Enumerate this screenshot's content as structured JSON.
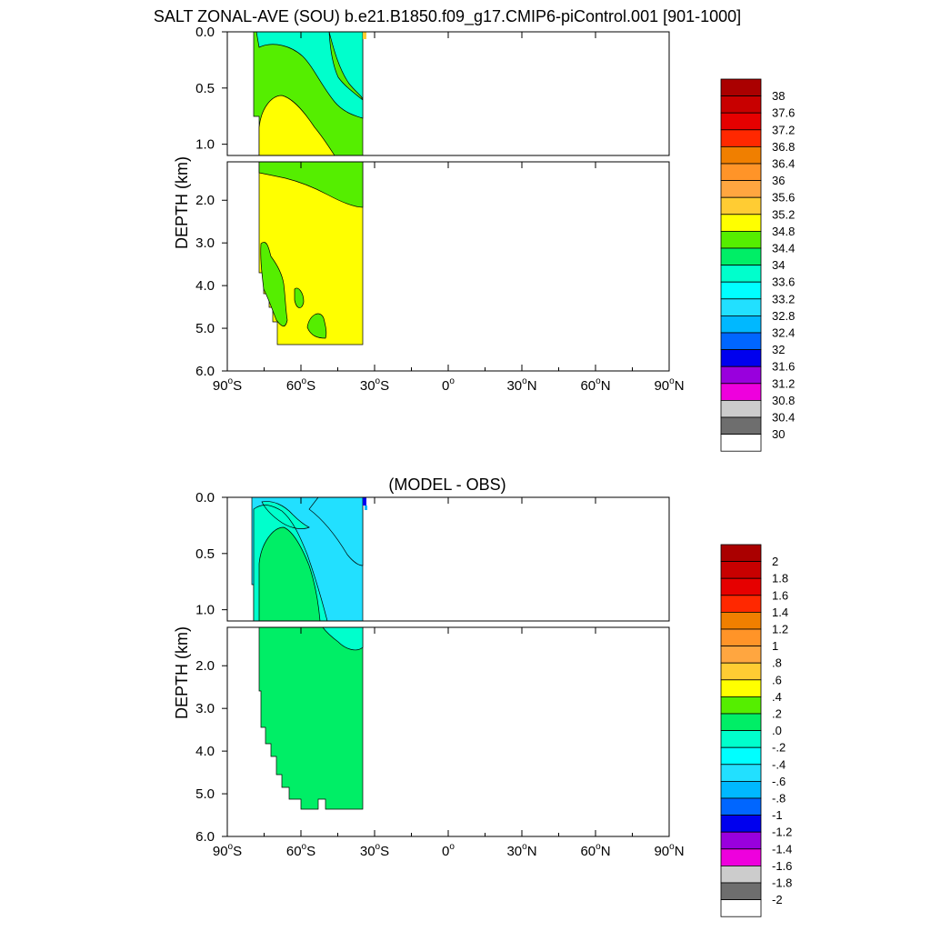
{
  "figure": {
    "title": "SALT ZONAL-AVE (SOU) b.e21.B1850.f09_g17.CMIP6-piControl.001 [901-1000]"
  },
  "chart_data": [
    {
      "type": "contour",
      "panel": "model",
      "title": "",
      "ylabel": "DEPTH (km)",
      "xlim": [
        -90,
        90
      ],
      "ylim_upper": [
        0,
        1.1
      ],
      "ylim_lower": [
        1.1,
        6.0
      ],
      "y_ticks_upper": [
        {
          "value": 0.0,
          "label": "0.0"
        },
        {
          "value": 0.5,
          "label": "0.5"
        },
        {
          "value": 1.0,
          "label": "1.0"
        }
      ],
      "y_ticks_lower": [
        {
          "value": 2.0,
          "label": "2.0"
        },
        {
          "value": 3.0,
          "label": "3.0"
        },
        {
          "value": 4.0,
          "label": "4.0"
        },
        {
          "value": 5.0,
          "label": "5.0"
        },
        {
          "value": 6.0,
          "label": "6.0"
        }
      ],
      "x_ticks": [
        {
          "value": -90,
          "num": "90",
          "hem": "S"
        },
        {
          "value": -60,
          "num": "60",
          "hem": "S"
        },
        {
          "value": -30,
          "num": "30",
          "hem": "S"
        },
        {
          "value": 0,
          "num": "0",
          "hem": ""
        },
        {
          "value": 30,
          "num": "30",
          "hem": "N"
        },
        {
          "value": 60,
          "num": "60",
          "hem": "N"
        },
        {
          "value": 90,
          "num": "90",
          "hem": "N"
        }
      ],
      "data_extent": {
        "lat_range": [
          -78,
          -34
        ],
        "depth_max": 5.4
      },
      "colorbar": {
        "labels": [
          "38",
          "37.6",
          "37.2",
          "36.8",
          "36.4",
          "36",
          "35.6",
          "35.2",
          "34.8",
          "34.4",
          "34",
          "33.6",
          "33.2",
          "32.8",
          "32.4",
          "32",
          "31.6",
          "31.2",
          "30.8",
          "30.4",
          "30"
        ],
        "colors": [
          "#aa0000",
          "#c80000",
          "#e60000",
          "#ff2800",
          "#f07f00",
          "#ff9428",
          "#ffa640",
          "#ffcc33",
          "#ffff00",
          "#55ee00",
          "#00ee66",
          "#00ffcc",
          "#00ffff",
          "#22e0ff",
          "#00b8ff",
          "#0066ff",
          "#0000ee",
          "#9900dd",
          "#ee00dd",
          "#cccccc",
          "#6e6e6e",
          "#ffffff"
        ]
      },
      "regions": [
        {
          "value": "34.4-34.8",
          "color": "#ffff00",
          "lat_range": [
            -78,
            -34
          ],
          "depth_range": [
            0.55,
            5.4
          ]
        },
        {
          "value": "34.0-34.4",
          "color": "#55ee00",
          "lat_range": [
            -78,
            -34
          ],
          "depth_range": [
            0.05,
            2.3
          ]
        },
        {
          "value": "33.6-34.0",
          "color": "#00ffcc",
          "lat_range": [
            -76,
            -38
          ],
          "depth_range": [
            0.0,
            0.8
          ]
        },
        {
          "value": "34.0-34.4",
          "color": "#55ee00",
          "lat_range": [
            -76,
            -65
          ],
          "depth_range": [
            3.0,
            5.2
          ]
        },
        {
          "value": "34.0-34.4",
          "color": "#55ee00",
          "lat_range": [
            -51,
            -46
          ],
          "depth_range": [
            4.9,
            5.3
          ]
        }
      ]
    },
    {
      "type": "contour",
      "panel": "difference",
      "title": "(MODEL - OBS)",
      "ylabel": "DEPTH (km)",
      "xlim": [
        -90,
        90
      ],
      "ylim_upper": [
        0,
        1.1
      ],
      "ylim_lower": [
        1.1,
        6.0
      ],
      "y_ticks_upper": [
        {
          "value": 0.0,
          "label": "0.0"
        },
        {
          "value": 0.5,
          "label": "0.5"
        },
        {
          "value": 1.0,
          "label": "1.0"
        }
      ],
      "y_ticks_lower": [
        {
          "value": 2.0,
          "label": "2.0"
        },
        {
          "value": 3.0,
          "label": "3.0"
        },
        {
          "value": 4.0,
          "label": "4.0"
        },
        {
          "value": 5.0,
          "label": "5.0"
        },
        {
          "value": 6.0,
          "label": "6.0"
        }
      ],
      "x_ticks": [
        {
          "value": -90,
          "num": "90",
          "hem": "S"
        },
        {
          "value": -60,
          "num": "60",
          "hem": "S"
        },
        {
          "value": -30,
          "num": "30",
          "hem": "S"
        },
        {
          "value": 0,
          "num": "0",
          "hem": ""
        },
        {
          "value": 30,
          "num": "30",
          "hem": "N"
        },
        {
          "value": 60,
          "num": "60",
          "hem": "N"
        },
        {
          "value": 90,
          "num": "90",
          "hem": "N"
        }
      ],
      "data_extent": {
        "lat_range": [
          -78,
          -34
        ],
        "depth_max": 5.4
      },
      "colorbar": {
        "labels": [
          "2",
          "1.8",
          "1.6",
          "1.4",
          "1.2",
          "1",
          ".8",
          ".6",
          ".4",
          ".2",
          ".0",
          "-.2",
          "-.4",
          "-.6",
          "-.8",
          "-1",
          "-1.2",
          "-1.4",
          "-1.6",
          "-1.8",
          "-2"
        ],
        "colors": [
          "#aa0000",
          "#c80000",
          "#e60000",
          "#ff2800",
          "#f07f00",
          "#ff9428",
          "#ffa640",
          "#ffcc33",
          "#ffff00",
          "#55ee00",
          "#00ee66",
          "#00ffcc",
          "#00ffff",
          "#22e0ff",
          "#00b8ff",
          "#0066ff",
          "#0000ee",
          "#9900dd",
          "#ee00dd",
          "#cccccc",
          "#6e6e6e",
          "#ffffff"
        ]
      },
      "regions": [
        {
          "value": "0.0-0.2",
          "color": "#00ee66",
          "lat_range": [
            -78,
            -34
          ],
          "depth_range": [
            0.2,
            5.4
          ]
        },
        {
          "value": "-0.2-0.0",
          "color": "#00ffcc",
          "lat_range": [
            -78,
            -34
          ],
          "depth_range": [
            0.05,
            1.6
          ]
        },
        {
          "value": "-0.4--0.2",
          "color": "#22e0ff",
          "lat_range": [
            -76,
            -34
          ],
          "depth_range": [
            0.0,
            1.3
          ]
        }
      ]
    }
  ]
}
